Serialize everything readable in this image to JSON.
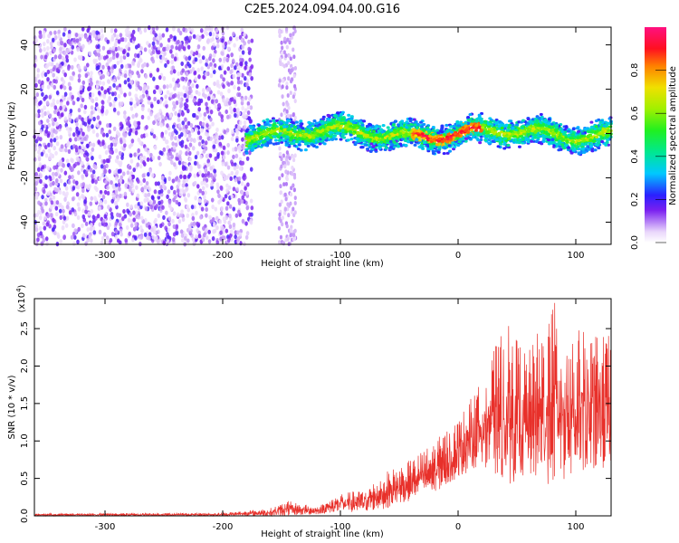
{
  "title": "C2E5.2024.094.04.00.G16",
  "colors": {
    "background": "#ffffff",
    "snr_line": "#e8302a",
    "scatter_low": "#d8b8f5",
    "scatter_mid": "#6a10f0"
  },
  "chart_data": [
    {
      "type": "heatmap",
      "title": "C2E5.2024.094.04.00.G16",
      "xlabel": "Height of straight line (km)",
      "ylabel": "Frequency (Hz)",
      "xlim": [
        -360,
        130
      ],
      "ylim": [
        -50,
        48
      ],
      "xticks": [
        -300,
        -200,
        -100,
        0,
        100
      ],
      "yticks": [
        40,
        20,
        0,
        -20,
        -40
      ],
      "grid": false,
      "colorbar": {
        "label": "Normalized spectral amplitude",
        "range": [
          0,
          1
        ],
        "ticks": [
          "0.0",
          "0.2",
          "0.4",
          "0.6",
          "0.8"
        ],
        "colormap": "rainbow (violet→red)"
      },
      "regions": [
        {
          "x_range": [
            -360,
            -175
          ],
          "freq_range": [
            -50,
            48
          ],
          "amplitude": "0.05-0.2 (noise)"
        },
        {
          "x_range": [
            -175,
            130
          ],
          "freq_center": 0,
          "freq_halfwidth": 8,
          "amplitude": "0.2-0.9 (signal)"
        }
      ],
      "signal_center_freq_hz": 0
    },
    {
      "type": "line",
      "xlabel": "Height of straight line (km)",
      "ylabel": "SNR (10 * v/v)",
      "yscale_label": "(x10",
      "yscale_exp": "4",
      "xlim": [
        -360,
        130
      ],
      "ylim": [
        0,
        2.9
      ],
      "xticks": [
        -300,
        -200,
        -100,
        0,
        100
      ],
      "yticks": [
        0.0,
        0.5,
        1.0,
        1.5,
        2.0,
        2.5
      ],
      "grid": false,
      "envelope_points": [
        {
          "x": -360,
          "min": 0.0,
          "max": 0.03
        },
        {
          "x": -200,
          "min": 0.0,
          "max": 0.04
        },
        {
          "x": -160,
          "min": 0.0,
          "max": 0.1
        },
        {
          "x": -145,
          "min": 0.0,
          "max": 0.2
        },
        {
          "x": -120,
          "min": 0.02,
          "max": 0.12
        },
        {
          "x": -100,
          "min": 0.05,
          "max": 0.3
        },
        {
          "x": -80,
          "min": 0.05,
          "max": 0.35
        },
        {
          "x": -60,
          "min": 0.1,
          "max": 0.6
        },
        {
          "x": -40,
          "min": 0.2,
          "max": 0.75
        },
        {
          "x": -20,
          "min": 0.3,
          "max": 1.0
        },
        {
          "x": 0,
          "min": 0.5,
          "max": 1.3
        },
        {
          "x": 20,
          "min": 0.7,
          "max": 1.8
        },
        {
          "x": 40,
          "min": 0.4,
          "max": 2.6
        },
        {
          "x": 60,
          "min": 0.5,
          "max": 2.2
        },
        {
          "x": 80,
          "min": 0.4,
          "max": 2.9
        },
        {
          "x": 100,
          "min": 0.5,
          "max": 2.5
        },
        {
          "x": 130,
          "min": 0.6,
          "max": 2.4
        }
      ]
    }
  ]
}
